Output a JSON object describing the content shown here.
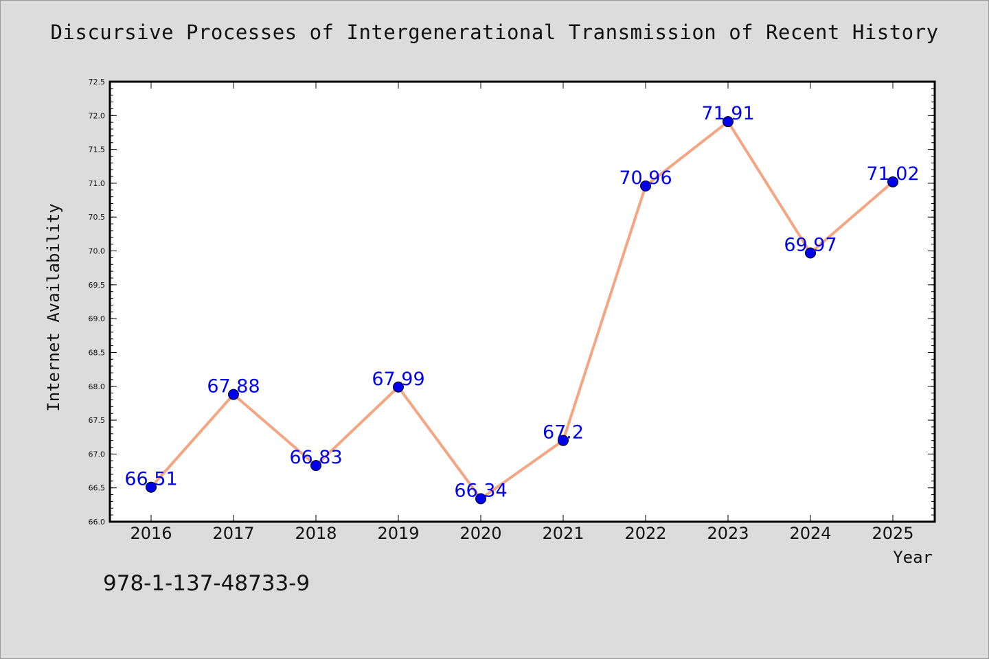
{
  "chart_data": {
    "type": "line",
    "title": "Discursive Processes of Intergenerational Transmission of Recent History",
    "xlabel": "Year",
    "ylabel": "Internet Availability",
    "categories": [
      "2016",
      "2017",
      "2018",
      "2019",
      "2020",
      "2021",
      "2022",
      "2023",
      "2024",
      "2025"
    ],
    "values": [
      66.51,
      67.88,
      66.83,
      67.99,
      66.34,
      67.2,
      70.96,
      71.91,
      69.97,
      71.02
    ],
    "data_labels": [
      "66.51",
      "67.88",
      "66.83",
      "67.99",
      "66.34",
      "67.2",
      "70.96",
      "71.91",
      "69.97",
      "71.02"
    ],
    "ylim": [
      66.0,
      72.5
    ],
    "yticks": [
      "66.0",
      "66.5",
      "67.0",
      "67.5",
      "68.0",
      "68.5",
      "69.0",
      "69.5",
      "70.0",
      "70.5",
      "71.0",
      "71.5",
      "72.0",
      "72.5"
    ],
    "grid": false,
    "line_color": "#f4a582",
    "marker_color": "#0000ee",
    "label_color": "#0000ee"
  },
  "footer": {
    "isbn": "978-1-137-48733-9"
  }
}
